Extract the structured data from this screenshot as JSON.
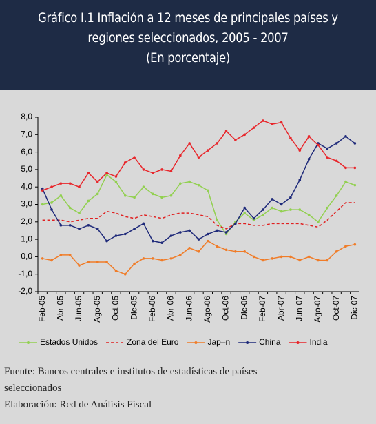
{
  "chart_data": {
    "type": "line",
    "title": [
      "Gráfico I.1 Inflación a 12 meses de principales países y",
      "regiones seleccionados, 2005 - 2007"
    ],
    "subtitle": "(En porcentaje)",
    "categories": [
      "Feb-05",
      null,
      "Abr-05",
      null,
      "Jun-05",
      null,
      "Ago-05",
      null,
      "Oct-05",
      null,
      "Dic-05",
      null,
      "Feb-06",
      null,
      "Abr-06",
      null,
      "Jun-06",
      null,
      "Ago-06",
      null,
      "Oct-06",
      null,
      "Dic-06",
      null,
      "Feb-07",
      null,
      "Abr-07",
      null,
      "Jun-07",
      null,
      "Ago-07",
      null,
      "Oct-07",
      null,
      "Dic-07"
    ],
    "series": [
      {
        "name": "Estados Unidos",
        "color": "#92d050",
        "marker": true,
        "dashed": false,
        "values": [
          3.0,
          3.1,
          3.5,
          2.8,
          2.5,
          3.2,
          3.6,
          4.7,
          4.3,
          3.5,
          3.4,
          4.0,
          3.6,
          3.4,
          3.5,
          4.2,
          4.3,
          4.1,
          3.8,
          2.1,
          1.3,
          2.0,
          2.5,
          2.1,
          2.4,
          2.8,
          2.6,
          2.7,
          2.7,
          2.4,
          2.0,
          2.8,
          3.5,
          4.3,
          4.1
        ]
      },
      {
        "name": "Zona del Euro",
        "color": "#e02020",
        "marker": false,
        "dashed": true,
        "values": [
          2.1,
          2.1,
          2.1,
          2.0,
          2.1,
          2.2,
          2.2,
          2.6,
          2.5,
          2.3,
          2.2,
          2.4,
          2.3,
          2.2,
          2.4,
          2.5,
          2.5,
          2.4,
          2.3,
          1.8,
          1.6,
          1.9,
          1.9,
          1.8,
          1.8,
          1.9,
          1.9,
          1.9,
          1.9,
          1.8,
          1.7,
          2.1,
          2.6,
          3.1,
          3.1
        ]
      },
      {
        "name": "Jap–n",
        "color": "#f07c28",
        "marker": true,
        "dashed": false,
        "values": [
          -0.1,
          -0.2,
          0.1,
          0.1,
          -0.5,
          -0.3,
          -0.3,
          -0.3,
          -0.8,
          -1.0,
          -0.4,
          -0.1,
          -0.1,
          -0.2,
          -0.1,
          0.1,
          0.5,
          0.3,
          0.9,
          0.6,
          0.4,
          0.3,
          0.3,
          0.0,
          -0.2,
          -0.1,
          0.0,
          0.0,
          -0.2,
          0.0,
          -0.2,
          -0.2,
          0.3,
          0.6,
          0.7
        ]
      },
      {
        "name": "China",
        "color": "#1f2a7a",
        "marker": true,
        "dashed": false,
        "values": [
          3.9,
          2.7,
          1.8,
          1.8,
          1.6,
          1.8,
          1.6,
          0.9,
          1.2,
          1.3,
          1.6,
          1.9,
          0.9,
          0.8,
          1.2,
          1.4,
          1.5,
          1.0,
          1.3,
          1.5,
          1.4,
          1.9,
          2.8,
          2.2,
          2.7,
          3.3,
          3.0,
          3.4,
          4.4,
          5.6,
          6.5,
          6.2,
          6.5,
          6.9,
          6.5
        ]
      },
      {
        "name": "India",
        "color": "#e8262b",
        "marker": true,
        "dashed": false,
        "values": [
          3.8,
          4.0,
          4.2,
          4.2,
          4.0,
          4.8,
          4.3,
          4.8,
          4.6,
          5.4,
          5.7,
          5.0,
          4.8,
          5.0,
          4.9,
          5.8,
          6.5,
          5.7,
          6.1,
          6.5,
          7.2,
          6.7,
          7.0,
          7.4,
          7.8,
          7.6,
          7.7,
          6.8,
          6.1,
          6.9,
          6.4,
          5.7,
          5.5,
          5.1,
          5.1
        ]
      }
    ],
    "ylim": [
      -2,
      8
    ],
    "yticks": [
      {
        "value": -2,
        "label": "-2,0"
      },
      {
        "value": -1,
        "label": "-1,0"
      },
      {
        "value": 0,
        "label": "0,0"
      },
      {
        "value": 1,
        "label": "1,0"
      },
      {
        "value": 2,
        "label": "2,0"
      },
      {
        "value": 3,
        "label": "3,0"
      },
      {
        "value": 4,
        "label": "4,0"
      },
      {
        "value": 5,
        "label": "5,0"
      },
      {
        "value": 6,
        "label": "6,0"
      },
      {
        "value": 7,
        "label": "7,0"
      },
      {
        "value": 8,
        "label": "8,0"
      }
    ],
    "grid": false,
    "legend": "bottom",
    "source": "Fuente: Bancos centrales e institutos de estadísticas de países seleccionados",
    "note": "Elaboración: Red de Análisis Fiscal"
  }
}
